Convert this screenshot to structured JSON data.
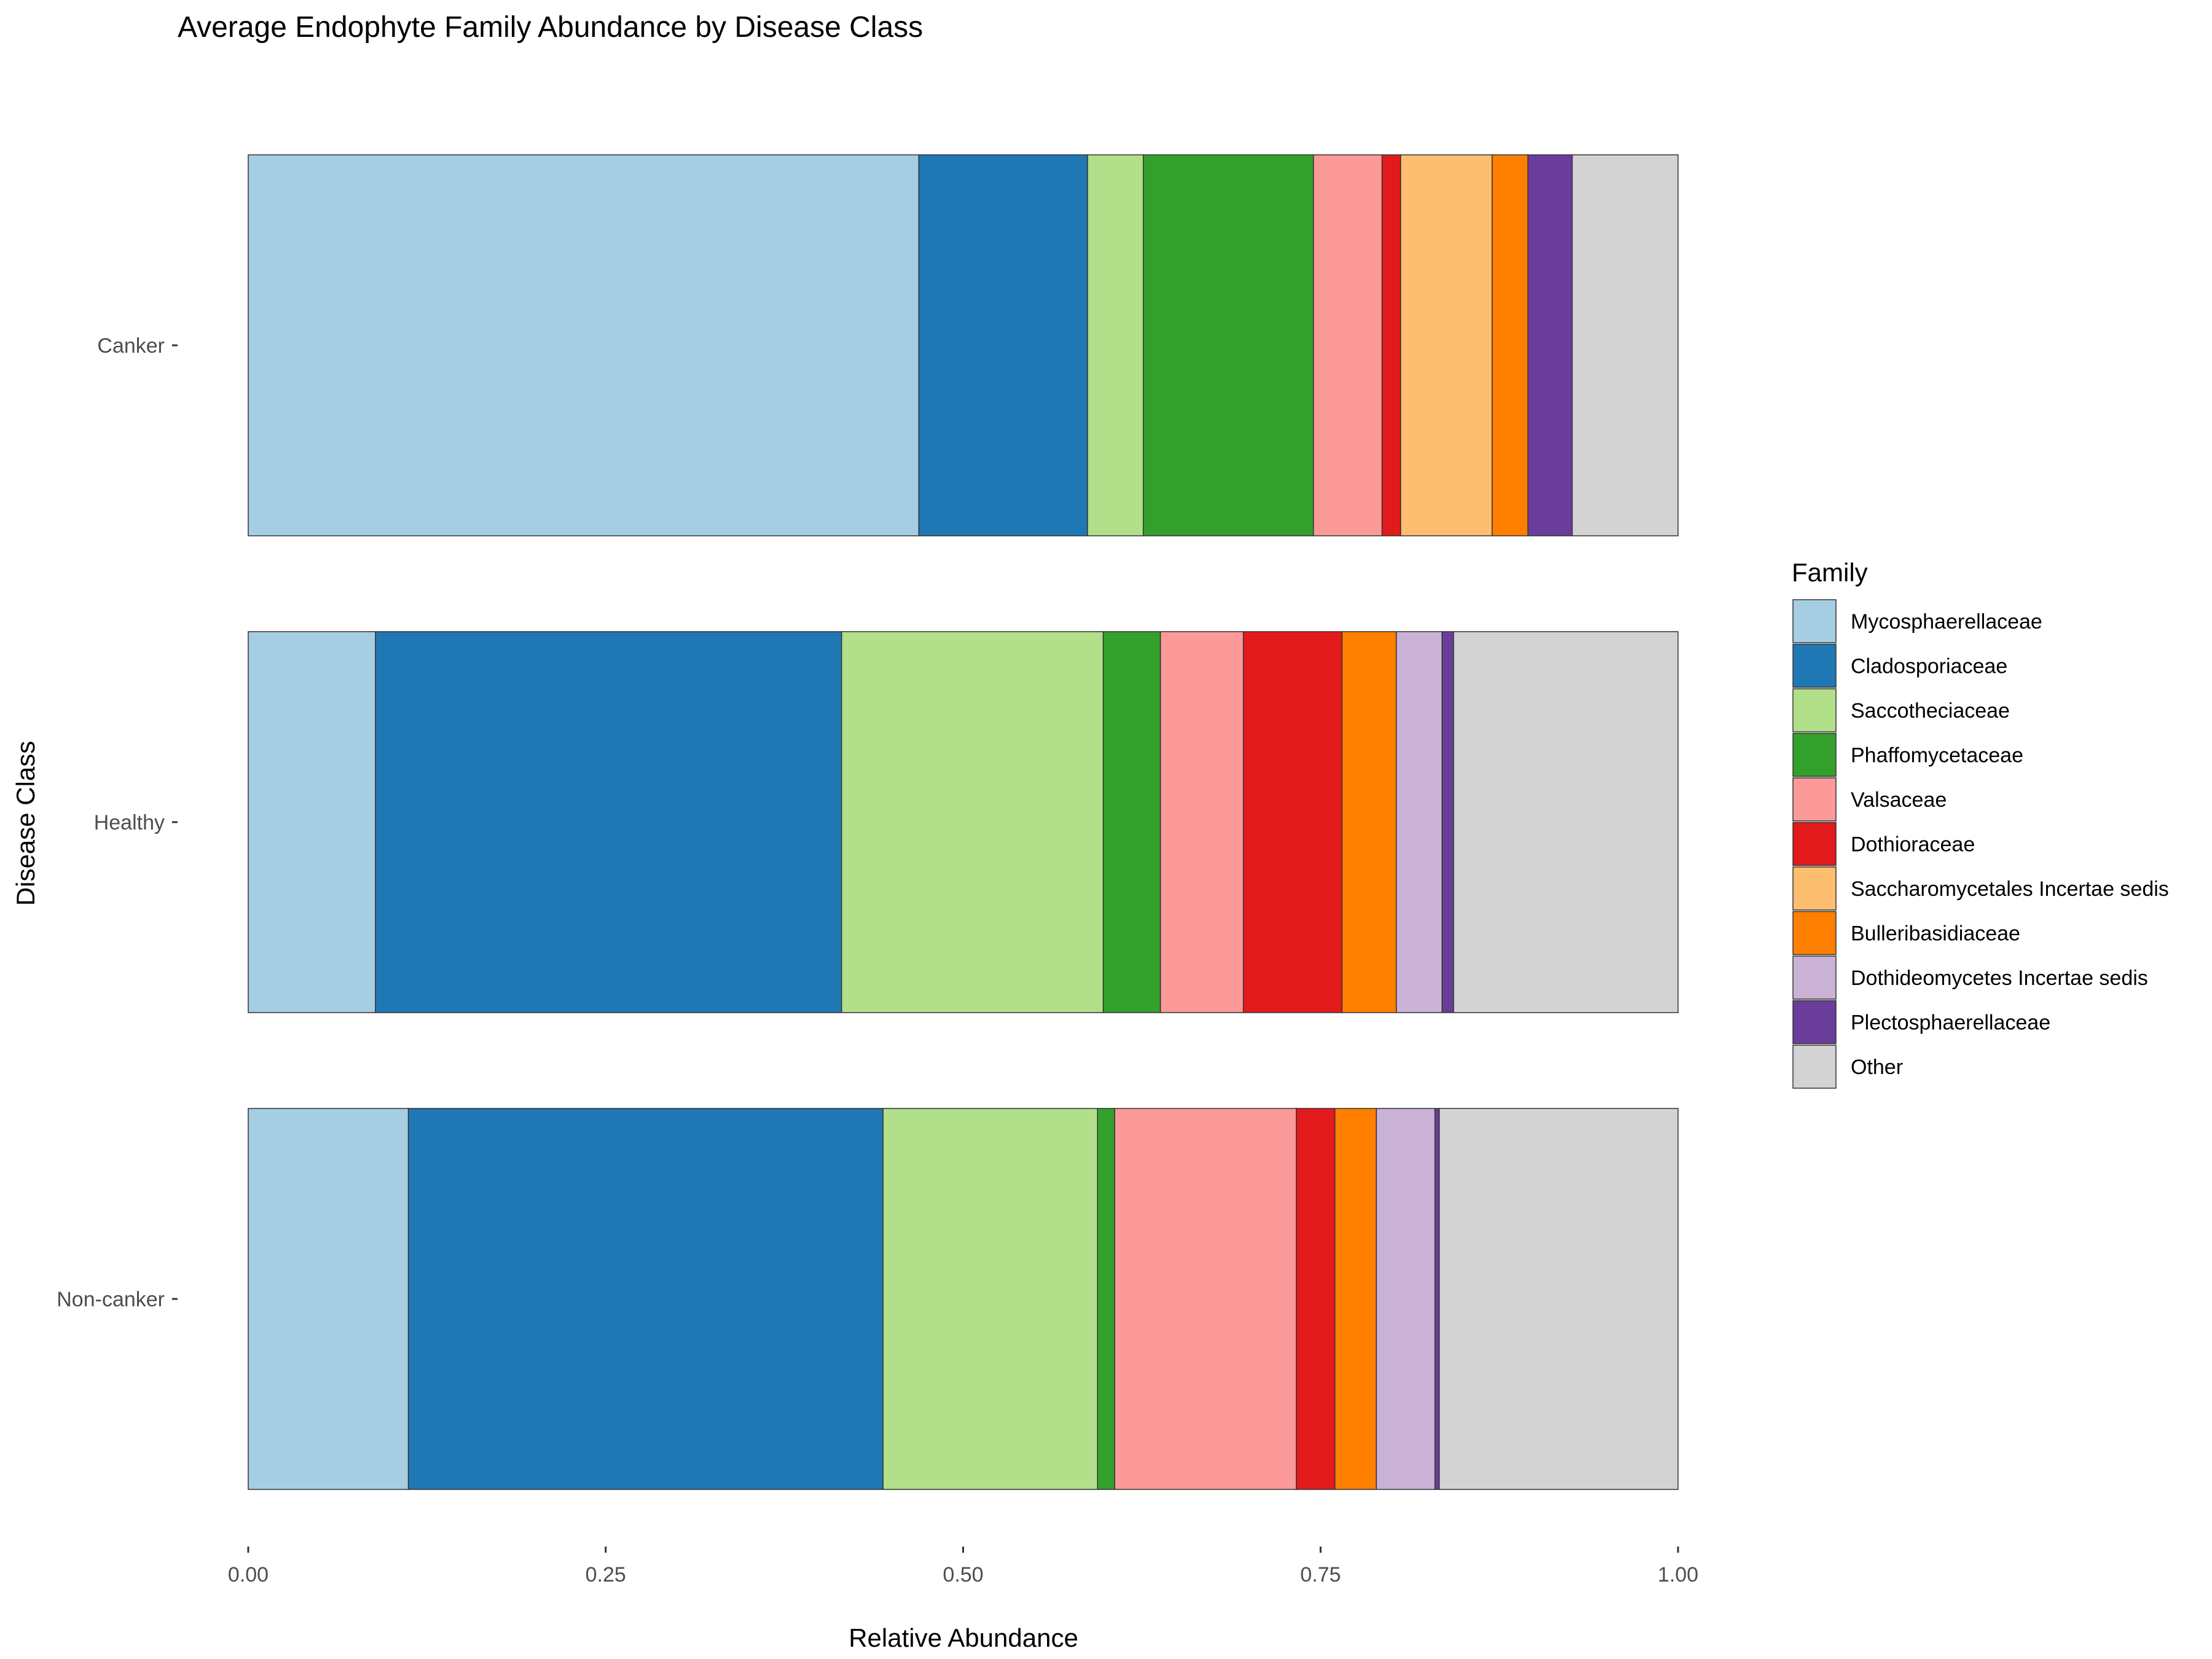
{
  "chart_data": {
    "type": "bar",
    "orientation": "horizontal",
    "stacked": true,
    "title": "Average Endophyte Family Abundance by Disease Class",
    "xlabel": "Relative Abundance",
    "ylabel": "Disease Class",
    "xlim": [
      0,
      1
    ],
    "x_ticks": [
      "0.00",
      "0.25",
      "0.50",
      "0.75",
      "1.00"
    ],
    "x_tick_values": [
      0,
      0.25,
      0.5,
      0.75,
      1.0
    ],
    "categories": [
      "Canker",
      "Healthy",
      "Non-canker"
    ],
    "legend_title": "Family",
    "legend_position": "right",
    "grid": false,
    "series": [
      {
        "name": "Mycosphaerellaceae",
        "color": "#A6CEE3",
        "values": [
          0.469,
          0.089,
          0.112
        ]
      },
      {
        "name": "Cladosporiaceae",
        "color": "#1F78B4",
        "values": [
          0.118,
          0.326,
          0.332
        ]
      },
      {
        "name": "Saccotheciaceae",
        "color": "#B2DF8A",
        "values": [
          0.039,
          0.183,
          0.15
        ]
      },
      {
        "name": "Phaffomycetaceae",
        "color": "#33A02C",
        "values": [
          0.119,
          0.04,
          0.012
        ]
      },
      {
        "name": "Valsaceae",
        "color": "#FB9A99",
        "values": [
          0.048,
          0.058,
          0.127
        ]
      },
      {
        "name": "Dothioraceae",
        "color": "#E31A1C",
        "values": [
          0.013,
          0.069,
          0.027
        ]
      },
      {
        "name": "Saccharomycetales Incertae sedis",
        "color": "#FDBF6F",
        "values": [
          0.064,
          0.0,
          0.0
        ]
      },
      {
        "name": "Bulleribasidiaceae",
        "color": "#FF7F00",
        "values": [
          0.025,
          0.038,
          0.029
        ]
      },
      {
        "name": "Dothideomycetes Incertae sedis",
        "color": "#CAB2D6",
        "values": [
          0.0,
          0.032,
          0.041
        ]
      },
      {
        "name": "Plectosphaerellaceae",
        "color": "#6A3D9A",
        "values": [
          0.031,
          0.008,
          0.003
        ]
      },
      {
        "name": "Other",
        "color": "#D3D3D3",
        "values": [
          0.074,
          0.157,
          0.167
        ]
      }
    ]
  }
}
